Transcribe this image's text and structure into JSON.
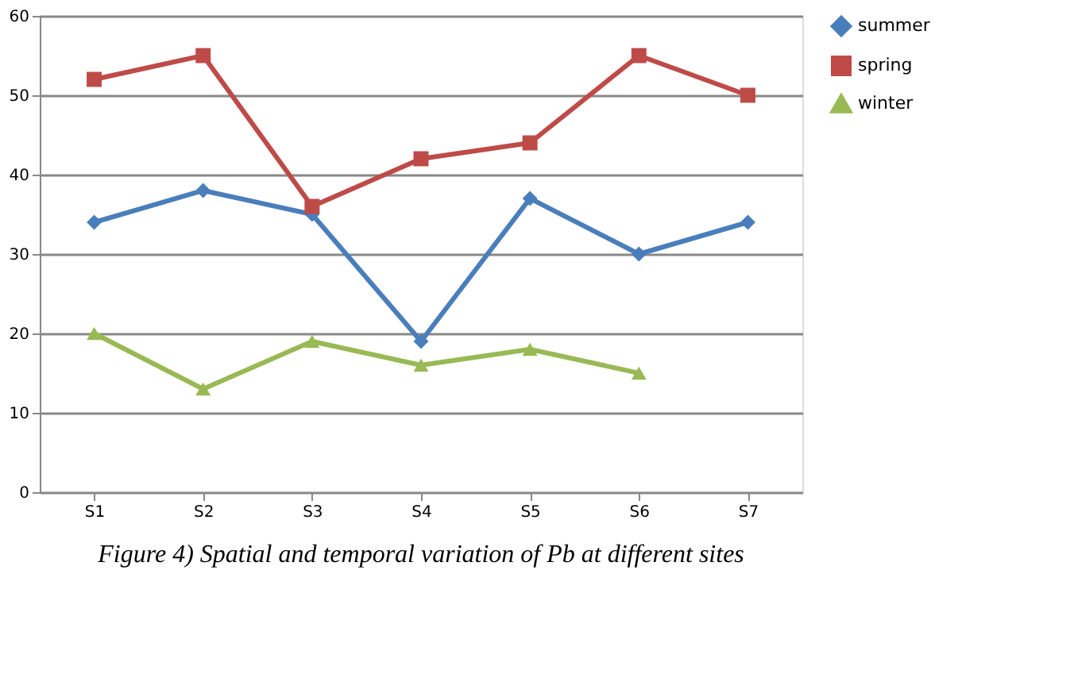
{
  "chart_data": {
    "type": "line",
    "title": "Figure 4) Spatial and temporal variation of Pb at different sites",
    "categories": [
      "S1",
      "S2",
      "S3",
      "S4",
      "S5",
      "S6",
      "S7"
    ],
    "series": [
      {
        "name": "summer",
        "color": "#4a7ebb",
        "marker": "diamond",
        "values": [
          34,
          38,
          35,
          19,
          37,
          30,
          34
        ]
      },
      {
        "name": "spring",
        "color": "#be4b48",
        "marker": "square",
        "values": [
          52,
          55,
          36,
          42,
          44,
          55,
          50
        ]
      },
      {
        "name": "winter",
        "color": "#98b954",
        "marker": "triangle",
        "values": [
          20,
          13,
          19,
          16,
          18,
          15,
          null
        ]
      }
    ],
    "ylim": [
      0,
      60
    ],
    "yticks": [
      0,
      10,
      20,
      30,
      40,
      50,
      60
    ],
    "grid": "y",
    "legend": "right",
    "line_style": "solid"
  }
}
